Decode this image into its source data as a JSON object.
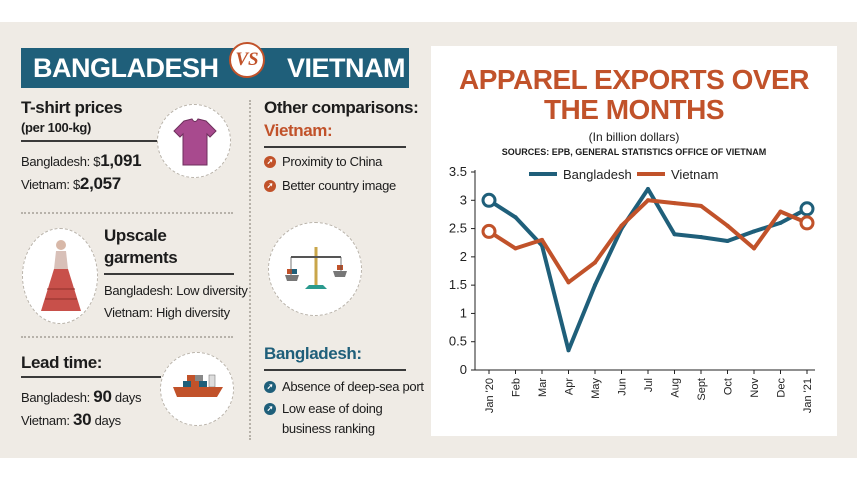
{
  "left": {
    "banner_left": "BANGLADESH",
    "banner_vs": "VS",
    "banner_right": "VIETNAM",
    "tshirt": {
      "title": "T-shirt prices",
      "subtitle": "(per 100-kg)",
      "bd_label": "Bangladesh: $",
      "bd_value": "1,091",
      "vn_label": "Vietnam: $",
      "vn_value": "2,057"
    },
    "upscale": {
      "title_1": "Upscale",
      "title_2": "garments",
      "bd": "Bangladesh: Low diversity",
      "vn": "Vietnam: High diversity"
    },
    "lead": {
      "title": "Lead time:",
      "bd_label": "Bangladesh:",
      "bd_value": "90",
      "bd_unit": "days",
      "vn_label": "Vietnam:",
      "vn_value": "30",
      "vn_unit": "days"
    },
    "other": {
      "title": "Other comparisons:",
      "vietnam_heading": "Vietnam:",
      "vietnam_items": [
        "Proximity to China",
        "Better country image"
      ],
      "bangladesh_heading": "Bangladesh:",
      "bangladesh_items": [
        "Absence of deep-sea port",
        "Low ease of doing",
        "business ranking"
      ]
    }
  },
  "colors": {
    "blue": "#1f5f7a",
    "orange": "#c1522a",
    "background": "#efebe5"
  },
  "chart_data": {
    "type": "line",
    "title": "APPAREL EXPORTS OVER",
    "title_line2": "THE MONTHS",
    "subtitle": "(In billion dollars)",
    "sources": "SOURCES: EPB, GENERAL STATISTICS OFFICE OF VIETNAM",
    "categories": [
      "Jan '20",
      "Feb",
      "Mar",
      "Apr",
      "May",
      "Jun",
      "Jul",
      "Aug",
      "Sept",
      "Oct",
      "Nov",
      "Dec",
      "Jan '21"
    ],
    "series": [
      {
        "name": "Bangladesh",
        "color": "#1f5f7a",
        "values": [
          3.0,
          2.7,
          2.2,
          0.35,
          1.5,
          2.5,
          3.2,
          2.4,
          2.35,
          2.28,
          2.45,
          2.6,
          2.85
        ]
      },
      {
        "name": "Vietnam",
        "color": "#c1522a",
        "values": [
          2.45,
          2.15,
          2.3,
          1.55,
          1.9,
          2.55,
          3.0,
          2.95,
          2.9,
          2.55,
          2.15,
          2.8,
          2.6
        ]
      }
    ],
    "ylim": [
      0,
      3.5
    ],
    "yticks": [
      "0",
      "0.5",
      "1",
      "1.5",
      "2",
      "2.5",
      "3",
      "3.5"
    ],
    "legend_position": "top"
  }
}
